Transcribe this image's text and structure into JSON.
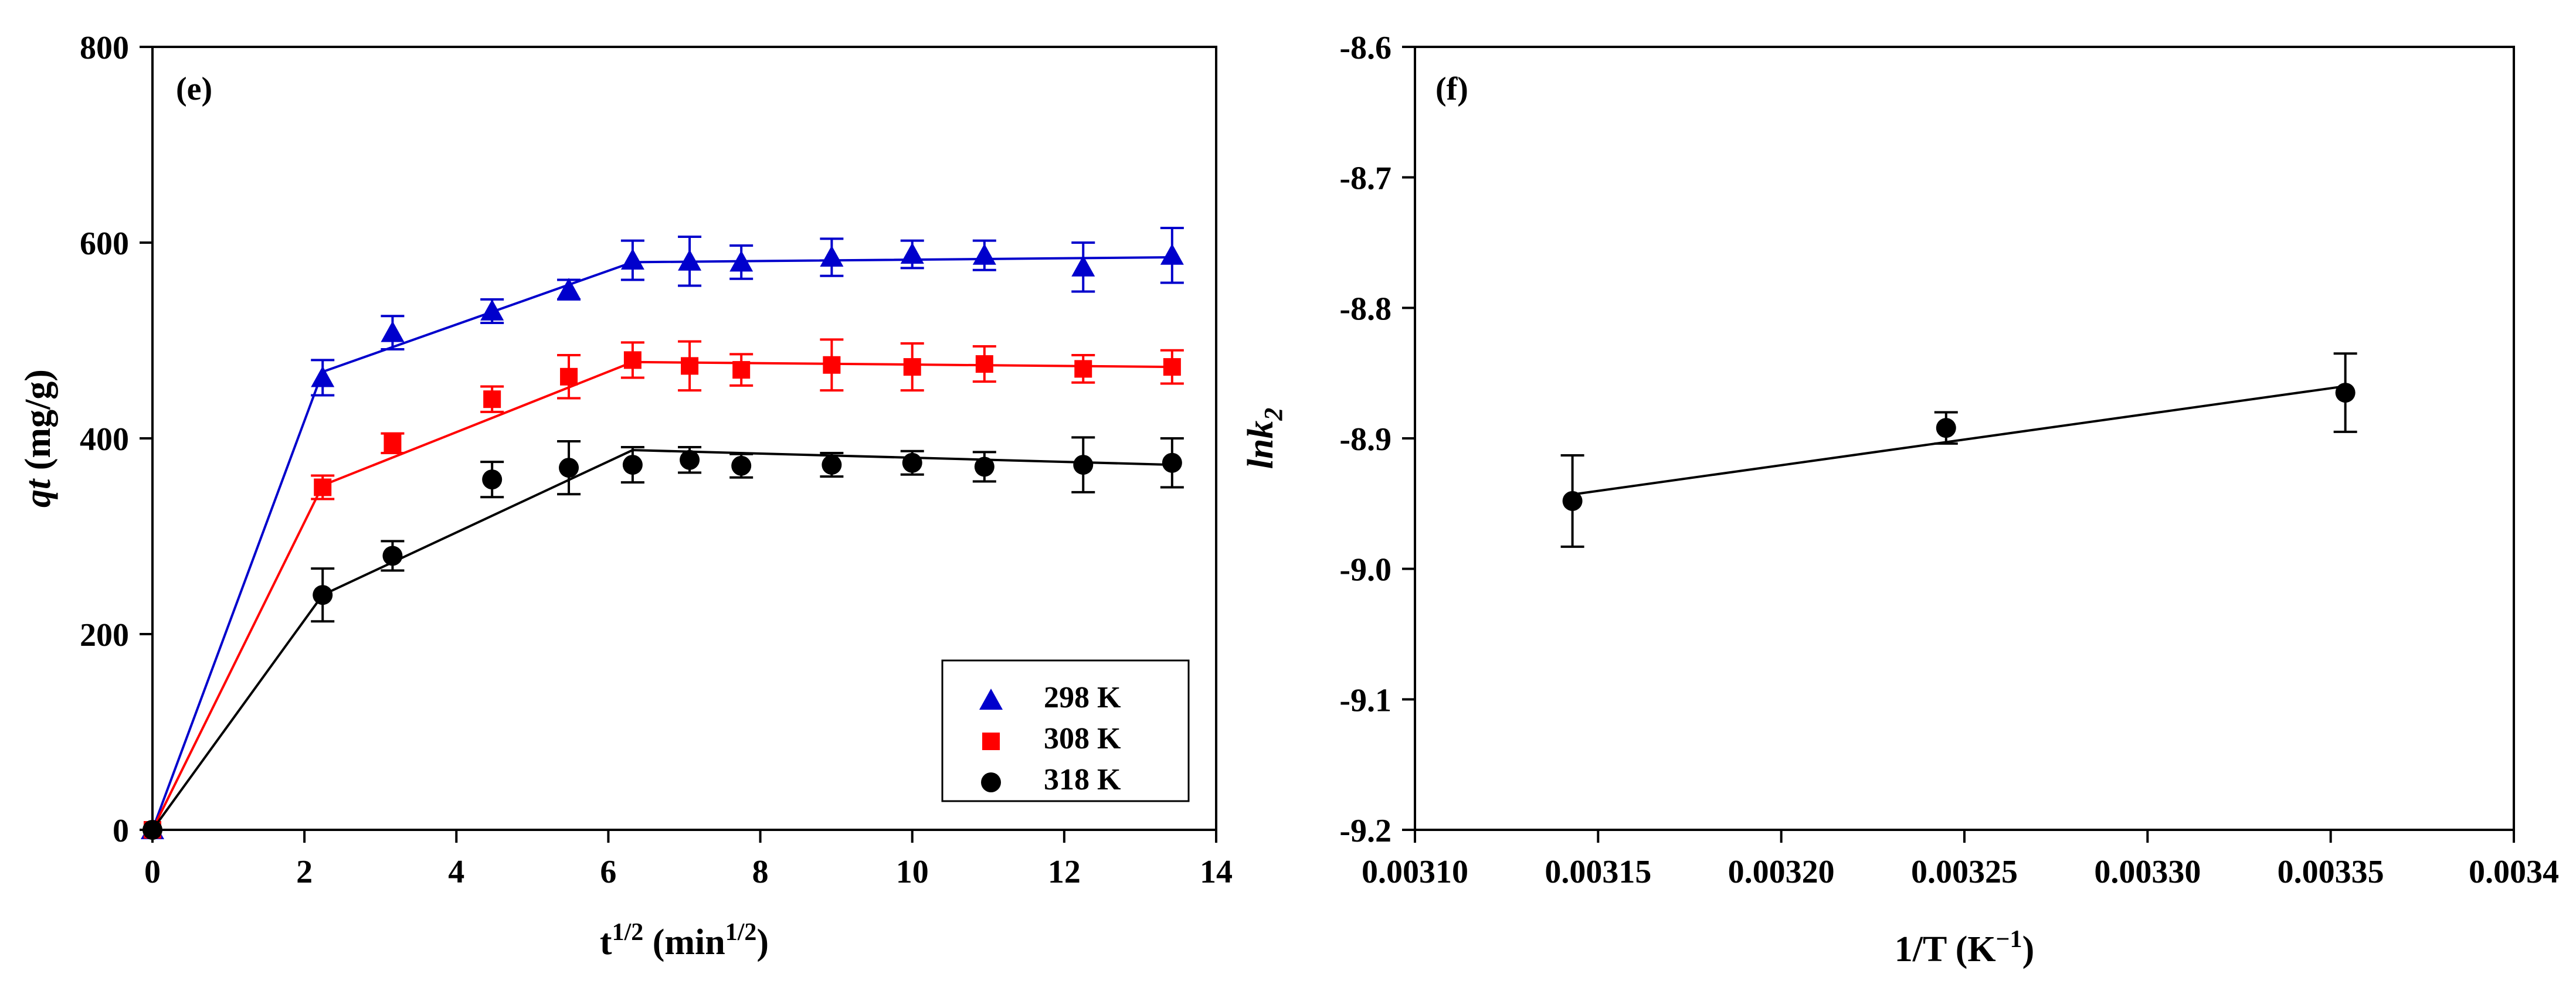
{
  "chart_data": [
    {
      "type": "scatter",
      "panel_label": "(e)",
      "xlabel": {
        "base": "t",
        "sup": "1/2",
        "units_open": " (min",
        "units_sup": "1/2",
        "units_close": ")"
      },
      "ylabel": {
        "italic": "qt",
        "units": " (mg/g)"
      },
      "xlim": [
        0,
        14
      ],
      "ylim": [
        0,
        800
      ],
      "xticks": [
        "0",
        "2",
        "4",
        "6",
        "8",
        "10",
        "12",
        "14"
      ],
      "yticks": [
        "0",
        "200",
        "400",
        "600",
        "800"
      ],
      "grid": false,
      "legend_position": "bottom-right",
      "series": [
        {
          "name": "298 K",
          "color": "#0000cc",
          "marker": "triangle",
          "x": [
            0,
            2.24,
            3.16,
            4.47,
            5.48,
            6.32,
            7.07,
            7.75,
            8.94,
            10.0,
            10.95,
            12.25,
            13.42
          ],
          "y": [
            0,
            462,
            508,
            530,
            552,
            582,
            581,
            580,
            585,
            588,
            587,
            575,
            587
          ],
          "err": [
            0,
            18,
            17,
            12,
            10,
            20,
            25,
            17,
            19,
            14,
            15,
            25,
            28
          ],
          "fit_x": [
            0,
            2.24,
            6.32,
            13.42
          ],
          "fit_y": [
            0,
            468,
            580,
            585
          ]
        },
        {
          "name": "308 K",
          "color": "#ff0000",
          "marker": "square",
          "x": [
            0,
            2.24,
            3.16,
            4.47,
            5.48,
            6.32,
            7.07,
            7.75,
            8.94,
            10.0,
            10.95,
            12.25,
            13.42
          ],
          "y": [
            0,
            350,
            395,
            440,
            463,
            480,
            474,
            470,
            475,
            473,
            476,
            471,
            473
          ],
          "err": [
            0,
            12,
            10,
            13,
            22,
            18,
            25,
            16,
            26,
            24,
            18,
            14,
            17
          ],
          "fit_x": [
            0,
            2.24,
            6.32,
            13.42
          ],
          "fit_y": [
            0,
            352,
            478,
            473
          ]
        },
        {
          "name": "318 K",
          "color": "#000000",
          "marker": "circle",
          "x": [
            0,
            2.24,
            3.16,
            4.47,
            5.48,
            6.32,
            7.07,
            7.75,
            8.94,
            10.0,
            10.95,
            12.25,
            13.42
          ],
          "y": [
            0,
            240,
            280,
            358,
            370,
            373,
            378,
            372,
            373,
            375,
            371,
            373,
            375
          ],
          "err": [
            0,
            27,
            15,
            18,
            27,
            18,
            13,
            12,
            12,
            12,
            15,
            28,
            25
          ],
          "fit_x": [
            0,
            2.24,
            6.32,
            13.42
          ],
          "fit_y": [
            0,
            240,
            388,
            373
          ]
        }
      ]
    },
    {
      "type": "scatter",
      "panel_label": "(f)",
      "xlabel": {
        "base": "1/T (K",
        "sup": "−1",
        "close": ")"
      },
      "ylabel": {
        "base": "lnk",
        "sub": "2"
      },
      "xlim": [
        0.0031,
        0.0034
      ],
      "ylim": [
        -9.2,
        -8.6
      ],
      "xticks": [
        "0.00310",
        "0.00315",
        "0.00320",
        "0.00325",
        "0.00330",
        "0.00335",
        "0.0034"
      ],
      "yticks": [
        "-9.2",
        "-9.1",
        "-9.0",
        "-8.9",
        "-8.8",
        "-8.7",
        "-8.6"
      ],
      "grid": false,
      "series": [
        {
          "name": "lnk2",
          "color": "#000000",
          "marker": "circle",
          "x": [
            0.003143,
            0.003245,
            0.003354
          ],
          "y": [
            -8.948,
            -8.892,
            -8.865
          ],
          "err": [
            0.035,
            0.012,
            0.03
          ],
          "fit_x": [
            0.003143,
            0.003354
          ],
          "fit_y": [
            -8.943,
            -8.86
          ]
        }
      ]
    }
  ]
}
